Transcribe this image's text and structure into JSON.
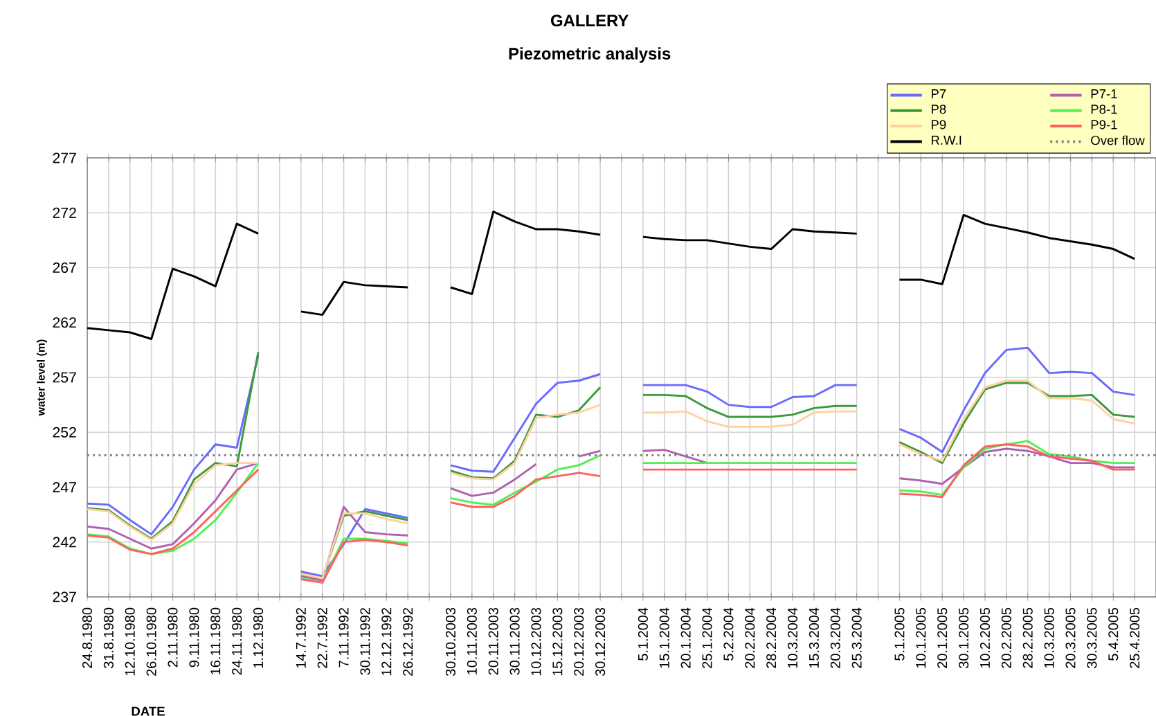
{
  "chart_data": {
    "type": "line",
    "title": "GALLERY",
    "subtitle": "Piezometric analysis",
    "xlabel": "DATE",
    "ylabel": "water level (m)",
    "categories": [
      "24.8.1980",
      "31.8.1980",
      "12.10.1980",
      "26.10.1980",
      "2.11.1980",
      "9.11.1980",
      "16.11.1980",
      "24.11.1980",
      "1.12.1980",
      null,
      "14.7.1992",
      "22.7.1992",
      "7.11.1992",
      "30.11.1992",
      "12.12.1992",
      "26.12.1992",
      null,
      "30.10.2003",
      "10.11.2003",
      "20.11.2003",
      "30.11.2003",
      "10.12.2003",
      "15.12.2003",
      "20.12.2003",
      "30.12.2003",
      null,
      "5.1.2004",
      "15.1.2004",
      "20.1.2004",
      "25.1.2004",
      "5.2.2004",
      "20.2.2004",
      "28.2.2004",
      "10.3.2004",
      "15.3.2004",
      "20.3.2004",
      "25.3.2004",
      null,
      "5.1.2005",
      "10.1.2005",
      "20.1.2005",
      "30.1.2005",
      "10.2.2005",
      "20.2.2005",
      "28.2.2005",
      "10.3.2005",
      "20.3.2005",
      "30.3.2005",
      "5.4.2005",
      "25.4.2005"
    ],
    "series": [
      {
        "name": "P7",
        "color": "#6a6aff",
        "values": [
          245.5,
          245.4,
          244,
          242.7,
          245.2,
          248.6,
          250.9,
          250.6,
          259,
          null,
          239.3,
          238.9,
          241.8,
          245,
          244.6,
          244.2,
          null,
          249,
          248.5,
          248.4,
          251.5,
          254.6,
          256.5,
          256.7,
          257.3,
          null,
          256.3,
          256.3,
          256.3,
          255.7,
          254.5,
          254.3,
          254.3,
          255.2,
          255.3,
          256.3,
          256.3,
          null,
          252.3,
          251.5,
          250.2,
          254,
          257.4,
          259.5,
          259.7,
          257.4,
          257.5,
          257.4,
          255.7,
          255.4
        ]
      },
      {
        "name": "P7-1",
        "color": "#b060b0",
        "values": [
          243.4,
          243.2,
          242.3,
          241.4,
          241.8,
          243.7,
          245.8,
          248.6,
          249.2,
          null,
          238.9,
          238.5,
          245.2,
          242.9,
          242.7,
          242.6,
          null,
          246.9,
          246.2,
          246.5,
          247.7,
          249.1,
          null,
          249.8,
          250.3,
          null,
          250.3,
          250.4,
          249.8,
          249.2,
          null,
          null,
          null,
          null,
          null,
          null,
          null,
          null,
          247.8,
          247.6,
          247.3,
          248.8,
          250.2,
          250.5,
          250.3,
          249.8,
          249.2,
          249.2,
          248.8,
          248.8
        ]
      },
      {
        "name": "P8",
        "color": "#3c9a3c",
        "values": [
          245.1,
          244.9,
          243.5,
          242.3,
          243.9,
          247.7,
          249.2,
          248.9,
          259.3,
          null,
          239.1,
          238.7,
          244.4,
          244.8,
          244.4,
          244,
          null,
          248.5,
          247.9,
          247.8,
          249.4,
          253.6,
          253.4,
          254,
          256.1,
          null,
          255.4,
          255.4,
          255.3,
          254.2,
          253.4,
          253.4,
          253.4,
          253.6,
          254.2,
          254.4,
          254.4,
          null,
          251.1,
          250.2,
          249.2,
          252.8,
          255.9,
          256.5,
          256.5,
          255.3,
          255.3,
          255.4,
          253.6,
          253.4
        ]
      },
      {
        "name": "P8-1",
        "color": "#50f050",
        "values": [
          242.7,
          242.5,
          241.4,
          240.9,
          241.2,
          242.3,
          244,
          246.5,
          249.2,
          null,
          238.7,
          238.3,
          242.3,
          242.3,
          242.1,
          241.9,
          null,
          246,
          245.6,
          245.4,
          246.5,
          247.5,
          248.6,
          249,
          249.9,
          null,
          249.2,
          249.2,
          249.2,
          249.2,
          249.2,
          249.2,
          249.2,
          249.2,
          249.2,
          249.2,
          249.2,
          null,
          246.7,
          246.6,
          246.3,
          248.8,
          250.5,
          250.9,
          251.2,
          250,
          249.8,
          249.4,
          249.2,
          249.2
        ]
      },
      {
        "name": "P9",
        "color": "#ffd0a0",
        "values": [
          245,
          244.8,
          243.4,
          242.2,
          243.7,
          247.3,
          249,
          249.2,
          249.2,
          null,
          239.1,
          238.7,
          244.6,
          244.6,
          244.1,
          243.7,
          null,
          248.3,
          247.8,
          247.7,
          249.2,
          253.3,
          253.6,
          253.8,
          254.5,
          null,
          253.8,
          253.8,
          253.9,
          253,
          252.5,
          252.5,
          252.5,
          252.7,
          253.8,
          253.9,
          253.9,
          null,
          250.9,
          250,
          249.4,
          253.2,
          256.1,
          256.7,
          256.7,
          255.1,
          255.1,
          254.9,
          253.2,
          252.8
        ]
      },
      {
        "name": "P9-1",
        "color": "#ff6060",
        "values": [
          242.6,
          242.4,
          241.3,
          240.9,
          241.4,
          242.9,
          244.8,
          246.7,
          248.6,
          null,
          238.6,
          238.3,
          242,
          242.2,
          242,
          241.7,
          null,
          245.6,
          245.2,
          245.2,
          246.2,
          247.7,
          248,
          248.3,
          248,
          null,
          248.6,
          248.6,
          248.6,
          248.6,
          248.6,
          248.6,
          248.6,
          248.6,
          248.6,
          248.6,
          248.6,
          null,
          246.4,
          246.3,
          246.1,
          249,
          250.7,
          250.9,
          250.7,
          249.8,
          249.6,
          249.4,
          248.6,
          248.6
        ]
      },
      {
        "name": "R.W.I",
        "color": "#000000",
        "values": [
          261.5,
          261.3,
          261.1,
          260.5,
          266.9,
          266.2,
          265.3,
          271,
          270.1,
          null,
          263,
          262.7,
          265.7,
          265.4,
          265.3,
          265.2,
          null,
          265.2,
          264.6,
          272.1,
          271.2,
          270.5,
          270.5,
          270.3,
          270,
          null,
          269.8,
          269.6,
          269.5,
          269.5,
          269.2,
          268.9,
          268.7,
          270.5,
          270.3,
          270.2,
          270.1,
          null,
          265.9,
          265.9,
          265.5,
          271.8,
          271,
          270.6,
          270.2,
          269.7,
          269.4,
          269.1,
          268.7,
          267.8
        ]
      }
    ],
    "ref_lines": [
      {
        "axis": "y",
        "value": 249.9,
        "label": "Over flow",
        "color": "#808080",
        "line_style": "dotted"
      }
    ],
    "ylim": [
      237,
      277
    ],
    "yticks": [
      237,
      242,
      247,
      252,
      257,
      262,
      267,
      272,
      277
    ],
    "grid": true,
    "legend": "top right"
  }
}
